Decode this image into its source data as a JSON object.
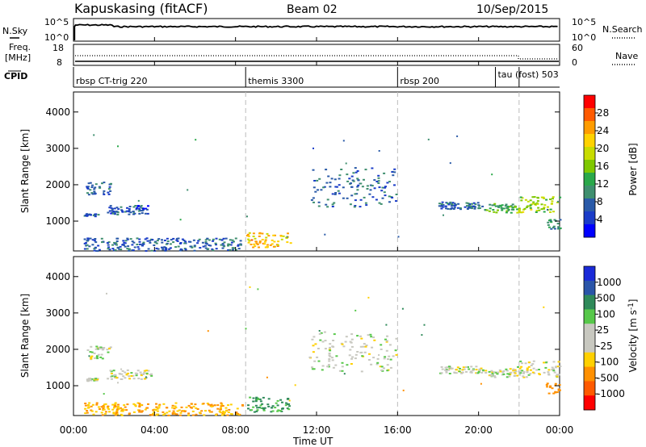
{
  "header": {
    "station": "Kapuskasing (fitACF)",
    "beam": "Beam 02",
    "date": "10/Sep/2015"
  },
  "noise_panel": {
    "left_label": "N.Sky",
    "left_ticks": [
      "10^5",
      "10^0"
    ],
    "right_label": "N.Search",
    "right_ticks": [
      "10^5",
      "10^0"
    ]
  },
  "freq_panel": {
    "left_label_1": "Freq.",
    "left_label_2": "[MHz]",
    "left_ticks": [
      "18",
      "8"
    ],
    "right_label": "Nave",
    "right_ticks": [
      "60",
      "0"
    ]
  },
  "cpid_panel": {
    "label": "CPID",
    "modes": [
      {
        "name": "rbsp CT-trig 220",
        "start_hour": 0
      },
      {
        "name": "themis 3300",
        "start_hour": 8.5
      },
      {
        "name": "rbsp 200",
        "start_hour": 16
      },
      {
        "name": "tau (fost) 503",
        "start_hour": 20.83
      },
      {
        "name": "",
        "start_hour": 22
      }
    ]
  },
  "x_axis": {
    "label": "Time UT",
    "range_hours": [
      0,
      24
    ],
    "ticks": [
      "00:00",
      "04:00",
      "08:00",
      "12:00",
      "16:00",
      "20:00",
      "00:00"
    ],
    "tick_hours": [
      0,
      4,
      8,
      12,
      16,
      20,
      24
    ]
  },
  "y_axis": {
    "label": "Slant Range [km]",
    "range_km": [
      180,
      4550
    ],
    "ticks": [
      "1000",
      "2000",
      "3000",
      "4000"
    ],
    "tick_values": [
      1000,
      2000,
      3000,
      4000
    ]
  },
  "power_colorbar": {
    "label": "Power [dB]",
    "ticks": [
      "28",
      "24",
      "20",
      "16",
      "12",
      "8",
      "4"
    ],
    "colors": [
      "#ff0000",
      "#ff5a00",
      "#ff9c00",
      "#ffd200",
      "#c8dc00",
      "#7fc800",
      "#2aa84a",
      "#3f8f6f",
      "#2a5aa8",
      "#1a3cc8",
      "#0000ff"
    ]
  },
  "velocity_colorbar": {
    "label": "Velocity [m s-1]",
    "ticks": [
      "1000",
      "500",
      "100",
      "25",
      "-25",
      "-100",
      "-500",
      "-1000"
    ],
    "colors": [
      "#1a2ad8",
      "#2a55a8",
      "#2f8a5a",
      "#57c84a",
      "#c8c8c0",
      "#c8c8c0",
      "#ffd000",
      "#ff9000",
      "#ff5a00",
      "#ff0000"
    ]
  },
  "chart_data": {
    "type": "heatmap",
    "title": "Kapuskasing (fitACF) Beam 02 10/Sep/2015",
    "xlabel": "Time UT",
    "ylabel": "Slant Range [km]",
    "xlim_hours": [
      0,
      24
    ],
    "ylim_km": [
      180,
      4550
    ],
    "panels": [
      "Power [dB]",
      "Velocity [m s-1]"
    ],
    "echo_regions": [
      {
        "t0": 0.6,
        "t1": 1.8,
        "r0": 1750,
        "r1": 2100,
        "power_db": 6,
        "velocity": 0
      },
      {
        "t0": 1.6,
        "t1": 3.8,
        "r0": 1200,
        "r1": 1450,
        "power_db": 5,
        "velocity": 0
      },
      {
        "t0": 0.5,
        "t1": 1.2,
        "r0": 1150,
        "r1": 1220,
        "power_db": 5,
        "velocity": 0
      },
      {
        "t0": 0.5,
        "t1": 8.3,
        "r0": 200,
        "r1": 550,
        "power_db": 6,
        "velocity": -100
      },
      {
        "t0": 8.5,
        "t1": 10.7,
        "r0": 300,
        "r1": 700,
        "power_db": 22,
        "velocity": 80
      },
      {
        "t0": 11.6,
        "t1": 15.9,
        "r0": 1400,
        "r1": 2500,
        "power_db": 6,
        "velocity": 0
      },
      {
        "t0": 18.0,
        "t1": 20.2,
        "r0": 1350,
        "r1": 1550,
        "power_db": 6,
        "velocity": 0
      },
      {
        "t0": 20.2,
        "t1": 21.8,
        "r0": 1250,
        "r1": 1500,
        "power_db": 12,
        "velocity": 0
      },
      {
        "t0": 21.8,
        "t1": 24.0,
        "r0": 1250,
        "r1": 1700,
        "power_db": 16,
        "velocity": 0
      },
      {
        "t0": 23.3,
        "t1": 24.0,
        "r0": 800,
        "r1": 1100,
        "power_db": 10,
        "velocity": -200
      }
    ]
  }
}
